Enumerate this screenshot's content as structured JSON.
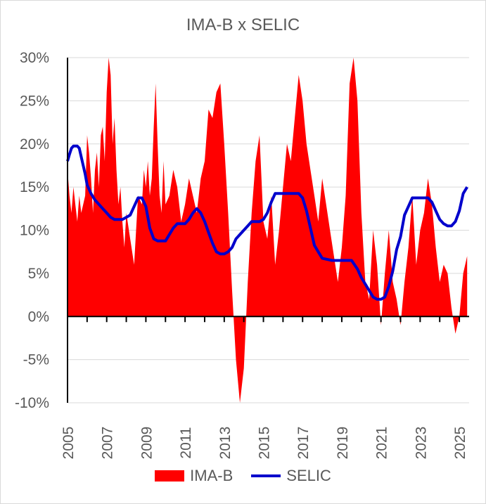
{
  "chart_data": {
    "type": "area+line",
    "title": "IMA-B x SELIC",
    "xlabel": "",
    "ylabel": "",
    "xlim": [
      2005.0,
      2025.5
    ],
    "ylim": [
      -10,
      30
    ],
    "grid": true,
    "y_tick_labels": [
      "30%",
      "25%",
      "20%",
      "15%",
      "10%",
      "5%",
      "0%",
      "-5%",
      "-10%"
    ],
    "y_tick_values": [
      30,
      25,
      20,
      15,
      10,
      5,
      0,
      -5,
      -10
    ],
    "x_tick_labels": [
      "2005",
      "2007",
      "2009",
      "2011",
      "2013",
      "2015",
      "2017",
      "2019",
      "2021",
      "2023",
      "2025"
    ],
    "x_tick_values": [
      2005,
      2007,
      2009,
      2011,
      2013,
      2015,
      2017,
      2019,
      2021,
      2023,
      2025
    ],
    "series": [
      {
        "name": "IMA-B",
        "kind": "area",
        "color": "#ff0000",
        "x": [
          2005.0,
          2005.1,
          2005.2,
          2005.3,
          2005.4,
          2005.5,
          2005.6,
          2005.7,
          2005.8,
          2005.9,
          2006.0,
          2006.1,
          2006.2,
          2006.3,
          2006.4,
          2006.5,
          2006.6,
          2006.7,
          2006.8,
          2006.9,
          2007.0,
          2007.1,
          2007.2,
          2007.3,
          2007.4,
          2007.5,
          2007.6,
          2007.7,
          2007.8,
          2007.9,
          2008.0,
          2008.2,
          2008.4,
          2008.6,
          2008.8,
          2008.9,
          2009.0,
          2009.1,
          2009.2,
          2009.3,
          2009.4,
          2009.5,
          2009.6,
          2009.7,
          2009.8,
          2009.9,
          2010.0,
          2010.2,
          2010.4,
          2010.6,
          2010.8,
          2011.0,
          2011.2,
          2011.4,
          2011.6,
          2011.8,
          2012.0,
          2012.2,
          2012.4,
          2012.6,
          2012.8,
          2013.0,
          2013.2,
          2013.4,
          2013.6,
          2013.8,
          2014.0,
          2014.2,
          2014.4,
          2014.6,
          2014.8,
          2015.0,
          2015.2,
          2015.4,
          2015.6,
          2015.8,
          2016.0,
          2016.2,
          2016.4,
          2016.6,
          2016.8,
          2017.0,
          2017.2,
          2017.4,
          2017.6,
          2017.8,
          2018.0,
          2018.2,
          2018.4,
          2018.6,
          2018.8,
          2019.0,
          2019.2,
          2019.4,
          2019.6,
          2019.8,
          2020.0,
          2020.2,
          2020.4,
          2020.6,
          2020.8,
          2021.0,
          2021.2,
          2021.4,
          2021.6,
          2021.8,
          2022.0,
          2022.2,
          2022.4,
          2022.6,
          2022.8,
          2023.0,
          2023.2,
          2023.4,
          2023.6,
          2023.8,
          2024.0,
          2024.2,
          2024.4,
          2024.6,
          2024.8,
          2025.0,
          2025.2,
          2025.4
        ],
        "values": [
          17,
          14,
          12,
          15,
          13,
          11,
          14,
          12,
          13,
          14,
          21,
          19,
          16,
          12,
          17,
          19,
          15,
          21,
          22,
          18,
          26,
          30,
          28,
          20,
          23,
          17,
          13,
          15,
          11,
          8,
          12,
          9,
          6,
          14,
          13,
          17,
          15,
          18,
          14,
          16,
          22,
          27,
          20,
          14,
          12,
          18,
          13,
          14,
          17,
          15,
          11,
          13,
          16,
          14,
          12,
          16,
          18,
          24,
          23,
          26,
          27,
          20,
          12,
          3,
          -5,
          -10,
          -6,
          4,
          12,
          18,
          21,
          11,
          9,
          14,
          6,
          10,
          15,
          20,
          18,
          23,
          28,
          25,
          20,
          17,
          14,
          11,
          16,
          13,
          10,
          7,
          4,
          8,
          14,
          27,
          30,
          25,
          12,
          4,
          2,
          10,
          6,
          -1,
          5,
          10,
          4,
          2,
          -1,
          4,
          8,
          14,
          6,
          10,
          12,
          16,
          13,
          8,
          4,
          6,
          5,
          1,
          -2,
          0,
          5,
          7
        ]
      },
      {
        "name": "SELIC",
        "kind": "line",
        "color": "#0000cc",
        "x": [
          2005.0,
          2005.1,
          2005.2,
          2005.3,
          2005.4,
          2005.5,
          2005.6,
          2005.7,
          2005.8,
          2005.9,
          2006.0,
          2006.2,
          2006.4,
          2006.6,
          2006.8,
          2007.0,
          2007.2,
          2007.4,
          2007.6,
          2007.8,
          2008.0,
          2008.2,
          2008.4,
          2008.6,
          2008.8,
          2009.0,
          2009.2,
          2009.4,
          2009.6,
          2009.8,
          2010.0,
          2010.2,
          2010.4,
          2010.6,
          2010.8,
          2011.0,
          2011.2,
          2011.4,
          2011.6,
          2011.8,
          2012.0,
          2012.2,
          2012.4,
          2012.6,
          2012.8,
          2013.0,
          2013.2,
          2013.4,
          2013.6,
          2013.8,
          2014.0,
          2014.2,
          2014.4,
          2014.6,
          2014.8,
          2015.0,
          2015.2,
          2015.4,
          2015.6,
          2015.8,
          2016.0,
          2016.4,
          2016.8,
          2017.0,
          2017.2,
          2017.4,
          2017.6,
          2017.8,
          2018.0,
          2018.5,
          2019.0,
          2019.5,
          2019.8,
          2020.0,
          2020.2,
          2020.4,
          2020.6,
          2020.8,
          2021.0,
          2021.2,
          2021.4,
          2021.6,
          2021.8,
          2022.0,
          2022.2,
          2022.4,
          2022.6,
          2022.8,
          2023.0,
          2023.4,
          2023.6,
          2023.8,
          2024.0,
          2024.2,
          2024.4,
          2024.6,
          2024.8,
          2025.0,
          2025.2,
          2025.4
        ],
        "values": [
          18.0,
          18.8,
          19.5,
          19.75,
          19.75,
          19.75,
          19.5,
          18.5,
          17.5,
          16.5,
          15.25,
          14.25,
          13.5,
          13.0,
          12.5,
          12.0,
          11.5,
          11.25,
          11.25,
          11.25,
          11.5,
          11.75,
          12.75,
          13.75,
          13.75,
          12.75,
          10.25,
          9.0,
          8.75,
          8.75,
          8.75,
          9.5,
          10.25,
          10.75,
          10.75,
          10.75,
          11.25,
          12.0,
          12.5,
          12.0,
          11.0,
          9.75,
          8.5,
          7.5,
          7.25,
          7.25,
          7.5,
          8.0,
          9.0,
          9.5,
          10.0,
          10.5,
          11.0,
          11.0,
          11.0,
          11.25,
          12.0,
          13.25,
          14.25,
          14.25,
          14.25,
          14.25,
          14.25,
          13.75,
          12.25,
          10.25,
          8.25,
          7.5,
          6.75,
          6.5,
          6.5,
          6.5,
          5.5,
          4.5,
          3.75,
          3.0,
          2.25,
          2.0,
          2.0,
          2.25,
          3.5,
          5.25,
          7.75,
          9.25,
          11.75,
          12.75,
          13.75,
          13.75,
          13.75,
          13.75,
          13.25,
          12.25,
          11.25,
          10.75,
          10.5,
          10.5,
          11.0,
          12.25,
          14.25,
          15.0
        ]
      }
    ]
  },
  "legend": {
    "area_label": "IMA-B",
    "line_label": "SELIC"
  }
}
